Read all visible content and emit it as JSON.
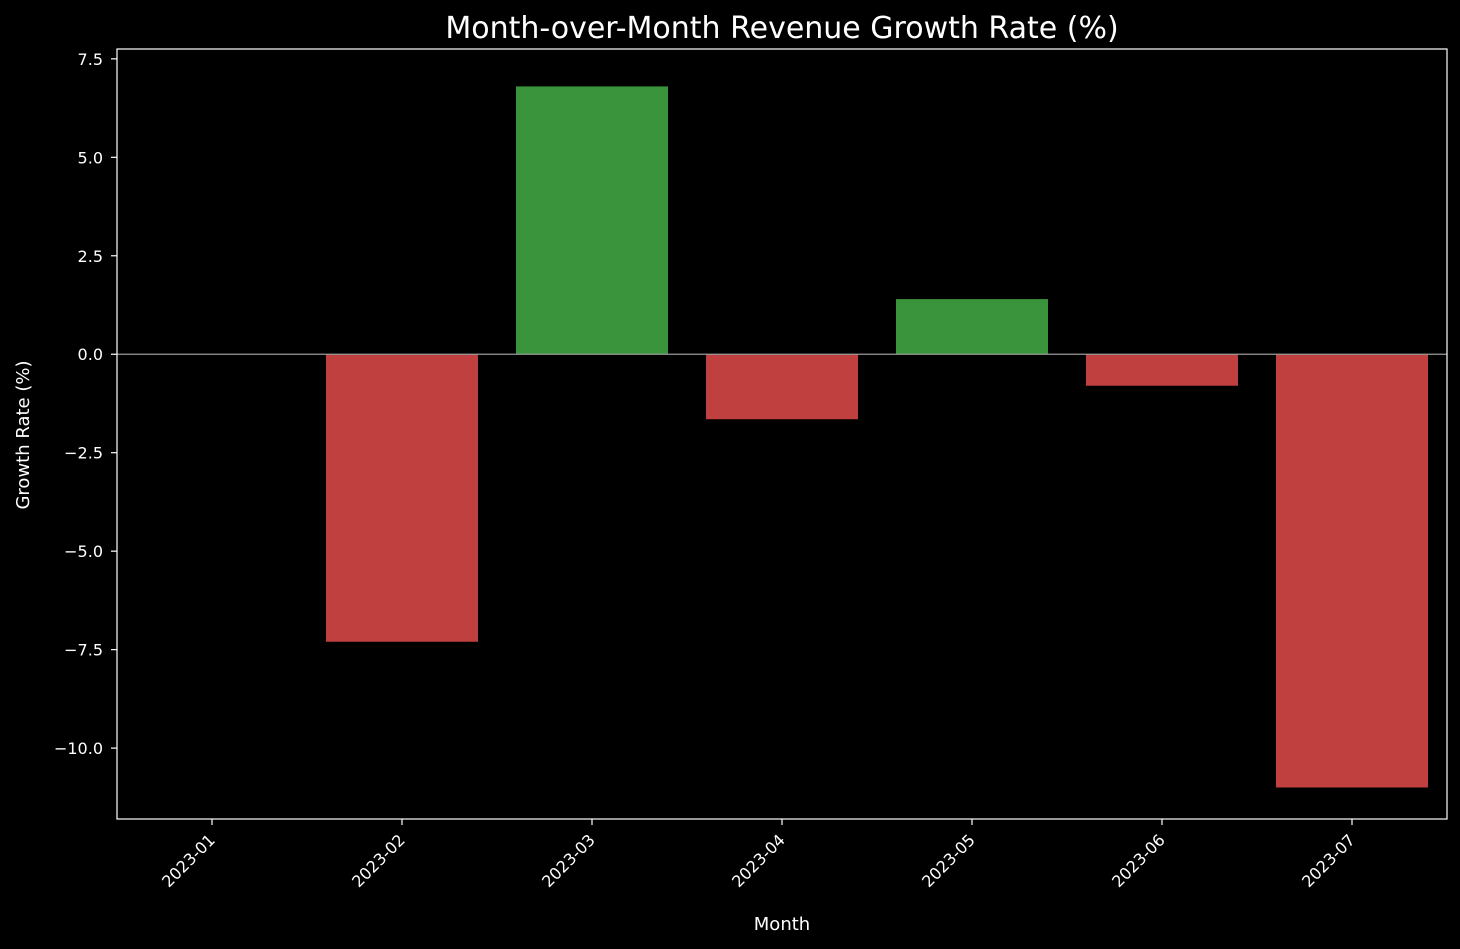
{
  "chart_data": {
    "type": "bar",
    "title": "Month-over-Month Revenue Growth Rate (%)",
    "xlabel": "Month",
    "ylabel": "Growth Rate (%)",
    "categories": [
      "2023-01",
      "2023-02",
      "2023-03",
      "2023-04",
      "2023-05",
      "2023-06",
      "2023-07"
    ],
    "values": [
      0.0,
      -7.3,
      6.8,
      -1.65,
      1.4,
      -0.8,
      -11.0
    ],
    "ylim": [
      -11.8,
      7.75
    ],
    "yticks": [
      7.5,
      5.0,
      2.5,
      0.0,
      -2.5,
      -5.0,
      -7.5,
      -10.0
    ],
    "ytick_labels": [
      "7.5",
      "5.0",
      "2.5",
      "0.0",
      "−2.5",
      "−5.0",
      "−7.5",
      "−10.0"
    ],
    "grid": false,
    "legend": "none",
    "colors": {
      "positive": "#3a943c",
      "negative": "#c03f3f",
      "background": "#000000",
      "axis": "#ffffff",
      "zero_line": "#9a9a9a"
    }
  }
}
